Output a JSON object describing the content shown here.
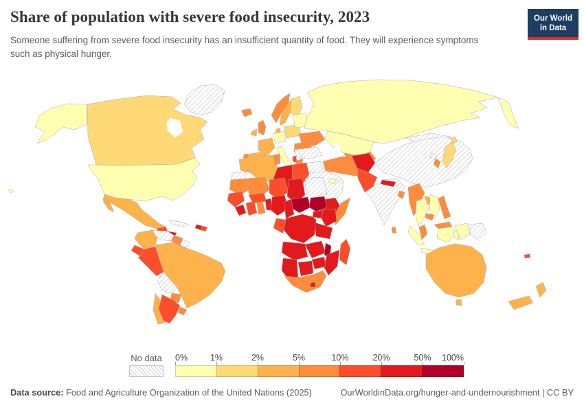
{
  "header": {
    "title": "Share of population with severe food insecurity, 2023",
    "subtitle": "Someone suffering from severe food insecurity has an insufficient quantity of food. They will experience symptoms such as physical hunger.",
    "logo": {
      "line1": "Our World",
      "line2": "in Data"
    }
  },
  "legend": {
    "no_data_label": "No data",
    "tick_labels": [
      "0%",
      "1%",
      "2%",
      "5%",
      "10%",
      "20%",
      "50%",
      "100%"
    ]
  },
  "footer": {
    "source_label": "Data source:",
    "source_text": "Food and Agriculture Organization of the United Nations (2025)",
    "credit": "OurWorldinData.org/hunger-and-undernourishment | CC BY"
  },
  "colors": {
    "logo_bg": "#1d3d63",
    "logo_accent": "#d1342f",
    "title_text": "#383636",
    "body_text": "#5b5b5b",
    "no_data_hatch": "#cfcfcf"
  },
  "chart_data": {
    "type": "choropleth",
    "title": "Share of population with severe food insecurity",
    "year": 2023,
    "unit": "% of population",
    "projection": "world",
    "legend_position": "bottom",
    "color_scale": {
      "no_data": {
        "label": "No data",
        "fill": "hatched"
      },
      "bins": [
        {
          "range": "0-1%",
          "color": "#FFFFB2"
        },
        {
          "range": "1-2%",
          "color": "#FED976"
        },
        {
          "range": "2-5%",
          "color": "#FEB24C"
        },
        {
          "range": "5-10%",
          "color": "#FD8D3C"
        },
        {
          "range": "10-20%",
          "color": "#FC4E2A"
        },
        {
          "range": "20-50%",
          "color": "#E31A1C"
        },
        {
          "range": "50-100%",
          "color": "#B10026"
        }
      ]
    },
    "regions": [
      {
        "id": "greenland",
        "name": "Greenland",
        "bin": "no-data"
      },
      {
        "id": "alaska",
        "name": "United States (Alaska)",
        "bin": "0-1%"
      },
      {
        "id": "canada",
        "name": "Canada",
        "bin": "1-2%"
      },
      {
        "id": "usa",
        "name": "United States",
        "bin": "0-1%"
      },
      {
        "id": "hawaii",
        "name": "United States (Hawaii)",
        "bin": "0-1%"
      },
      {
        "id": "mexico",
        "name": "Mexico",
        "bin": "2-5%"
      },
      {
        "id": "guatemala",
        "name": "Guatemala",
        "bin": "10-20%"
      },
      {
        "id": "honduras",
        "name": "Honduras",
        "bin": "20-50%"
      },
      {
        "id": "central-america",
        "name": "Nicaragua, Costa Rica & Panama",
        "bin": "5-10%"
      },
      {
        "id": "cuba",
        "name": "Cuba",
        "bin": "no-data"
      },
      {
        "id": "haiti",
        "name": "Haiti",
        "bin": "20-50%"
      },
      {
        "id": "dominican-republic",
        "name": "Dominican Republic",
        "bin": "10-20%"
      },
      {
        "id": "colombia",
        "name": "Colombia",
        "bin": "2-5%"
      },
      {
        "id": "venezuela",
        "name": "Venezuela",
        "bin": "no-data"
      },
      {
        "id": "guyana",
        "name": "Guyana",
        "bin": "5-10%"
      },
      {
        "id": "french-guiana",
        "name": "French Guiana",
        "bin": "no-data"
      },
      {
        "id": "ecuador",
        "name": "Ecuador",
        "bin": "10-20%"
      },
      {
        "id": "peru",
        "name": "Peru",
        "bin": "10-20%"
      },
      {
        "id": "brazil",
        "name": "Brazil",
        "bin": "2-5%"
      },
      {
        "id": "bolivia",
        "name": "Bolivia",
        "bin": "no-data"
      },
      {
        "id": "paraguay",
        "name": "Paraguay",
        "bin": "5-10%"
      },
      {
        "id": "uruguay",
        "name": "Uruguay",
        "bin": "5-10%"
      },
      {
        "id": "chile",
        "name": "Chile",
        "bin": "2-5%"
      },
      {
        "id": "argentina",
        "name": "Argentina",
        "bin": "10-20%"
      },
      {
        "id": "iceland",
        "name": "Iceland",
        "bin": "5-10%"
      },
      {
        "id": "uk",
        "name": "United Kingdom",
        "bin": "5-10%"
      },
      {
        "id": "ireland",
        "name": "Ireland",
        "bin": "2-5%"
      },
      {
        "id": "norway",
        "name": "Norway",
        "bin": "5-10%"
      },
      {
        "id": "sweden",
        "name": "Sweden",
        "bin": "2-5%"
      },
      {
        "id": "finland",
        "name": "Finland",
        "bin": "1-2%"
      },
      {
        "id": "denmark",
        "name": "Denmark",
        "bin": "2-5%"
      },
      {
        "id": "germany",
        "name": "Germany",
        "bin": "0-1%"
      },
      {
        "id": "france",
        "name": "France",
        "bin": "2-5%"
      },
      {
        "id": "spain",
        "name": "Spain",
        "bin": "2-5%"
      },
      {
        "id": "portugal",
        "name": "Portugal",
        "bin": "5-10%"
      },
      {
        "id": "italy",
        "name": "Italy",
        "bin": "0-1%"
      },
      {
        "id": "poland",
        "name": "Poland",
        "bin": "1-2%"
      },
      {
        "id": "eastern-europe",
        "name": "Baltics & Belarus",
        "bin": "0-1%"
      },
      {
        "id": "ukraine",
        "name": "Ukraine",
        "bin": "5-10%"
      },
      {
        "id": "romania",
        "name": "Romania",
        "bin": "5-10%"
      },
      {
        "id": "albania",
        "name": "Albania",
        "bin": "10-20%"
      },
      {
        "id": "greece",
        "name": "Greece",
        "bin": "5-10%"
      },
      {
        "id": "russia",
        "name": "Russia",
        "bin": "0-1%"
      },
      {
        "id": "kazakhstan",
        "name": "Kazakhstan",
        "bin": "0-1%"
      },
      {
        "id": "central-asia",
        "name": "Uzbekistan & Turkmenistan",
        "bin": "5-10%"
      },
      {
        "id": "turkey",
        "name": "Turkey",
        "bin": "no-data"
      },
      {
        "id": "syria-iraq",
        "name": "Syria & Iraq",
        "bin": "no-data"
      },
      {
        "id": "saudi-arabia",
        "name": "Saudi Arabia, Yemen & Oman",
        "bin": "no-data"
      },
      {
        "id": "uae",
        "name": "United Arab Emirates",
        "bin": "0-1%"
      },
      {
        "id": "iran",
        "name": "Iran",
        "bin": "5-10%"
      },
      {
        "id": "afghanistan",
        "name": "Afghanistan",
        "bin": "20-50%"
      },
      {
        "id": "pakistan",
        "name": "Pakistan",
        "bin": "10-20%"
      },
      {
        "id": "india",
        "name": "India",
        "bin": "no-data"
      },
      {
        "id": "nepal",
        "name": "Nepal",
        "bin": "20-50%"
      },
      {
        "id": "bangladesh",
        "name": "Bangladesh",
        "bin": "5-10%"
      },
      {
        "id": "sri-lanka",
        "name": "Sri Lanka",
        "bin": "5-10%"
      },
      {
        "id": "china",
        "name": "China",
        "bin": "no-data"
      },
      {
        "id": "mongolia",
        "name": "Mongolia",
        "bin": "no-data"
      },
      {
        "id": "myanmar",
        "name": "Myanmar",
        "bin": "5-10%"
      },
      {
        "id": "thailand",
        "name": "Thailand",
        "bin": "0-1%"
      },
      {
        "id": "laos",
        "name": "Laos",
        "bin": "2-5%"
      },
      {
        "id": "vietnam",
        "name": "Vietnam",
        "bin": "0-1%"
      },
      {
        "id": "cambodia",
        "name": "Cambodia",
        "bin": "5-10%"
      },
      {
        "id": "malaysia",
        "name": "Malaysia",
        "bin": "5-10%"
      },
      {
        "id": "indonesia",
        "name": "Indonesia",
        "bin": "0-1%"
      },
      {
        "id": "philippines",
        "name": "Philippines",
        "bin": "5-10%"
      },
      {
        "id": "north-korea",
        "name": "North Korea",
        "bin": "no-data"
      },
      {
        "id": "south-korea",
        "name": "South Korea",
        "bin": "5-10%"
      },
      {
        "id": "japan",
        "name": "Japan",
        "bin": "1-2%"
      },
      {
        "id": "papua-new-guinea",
        "name": "Papua New Guinea",
        "bin": "no-data"
      },
      {
        "id": "australia",
        "name": "Australia",
        "bin": "2-5%"
      },
      {
        "id": "new-zealand",
        "name": "New Zealand",
        "bin": "2-5%"
      },
      {
        "id": "fiji",
        "name": "Fiji",
        "bin": "10-20%"
      },
      {
        "id": "morocco",
        "name": "Morocco",
        "bin": "2-5%"
      },
      {
        "id": "western-sahara",
        "name": "Western Sahara",
        "bin": "no-data"
      },
      {
        "id": "algeria",
        "name": "Algeria",
        "bin": "2-5%"
      },
      {
        "id": "tunisia",
        "name": "Tunisia",
        "bin": "5-10%"
      },
      {
        "id": "libya",
        "name": "Libya",
        "bin": "20-50%"
      },
      {
        "id": "egypt",
        "name": "Egypt",
        "bin": "10-20%"
      },
      {
        "id": "mauritania",
        "name": "Mauritania",
        "bin": "5-10%"
      },
      {
        "id": "mali",
        "name": "Mali",
        "bin": "5-10%"
      },
      {
        "id": "niger",
        "name": "Niger",
        "bin": "10-20%"
      },
      {
        "id": "chad",
        "name": "Chad",
        "bin": "20-50%"
      },
      {
        "id": "sudan",
        "name": "Sudan",
        "bin": "no-data"
      },
      {
        "id": "eritrea",
        "name": "Eritrea",
        "bin": "no-data"
      },
      {
        "id": "ethiopia",
        "name": "Ethiopia",
        "bin": "20-50%"
      },
      {
        "id": "somalia",
        "name": "Somalia",
        "bin": "5-10%"
      },
      {
        "id": "senegal",
        "name": "Senegal & Guinea",
        "bin": "10-20%"
      },
      {
        "id": "sierra-leone",
        "name": "Sierra Leone & Liberia",
        "bin": "20-50%"
      },
      {
        "id": "ivory-coast",
        "name": "Côte d'Ivoire",
        "bin": "10-20%"
      },
      {
        "id": "ghana",
        "name": "Ghana",
        "bin": "5-10%"
      },
      {
        "id": "burkina-faso",
        "name": "Burkina Faso",
        "bin": "10-20%"
      },
      {
        "id": "benin",
        "name": "Benin & Togo",
        "bin": "20-50%"
      },
      {
        "id": "nigeria",
        "name": "Nigeria",
        "bin": "20-50%"
      },
      {
        "id": "cameroon",
        "name": "Cameroon",
        "bin": "20-50%"
      },
      {
        "id": "central-african-republic",
        "name": "Central African Republic",
        "bin": "50-100%"
      },
      {
        "id": "south-sudan",
        "name": "South Sudan",
        "bin": "50-100%"
      },
      {
        "id": "uganda",
        "name": "Uganda",
        "bin": "20-50%"
      },
      {
        "id": "kenya",
        "name": "Kenya",
        "bin": "20-50%"
      },
      {
        "id": "dr-congo",
        "name": "Democratic Republic of Congo",
        "bin": "20-50%"
      },
      {
        "id": "congo-gabon",
        "name": "Congo & Gabon",
        "bin": "10-20%"
      },
      {
        "id": "tanzania",
        "name": "Tanzania",
        "bin": "20-50%"
      },
      {
        "id": "angola",
        "name": "Angola",
        "bin": "20-50%"
      },
      {
        "id": "zambia",
        "name": "Zambia",
        "bin": "20-50%"
      },
      {
        "id": "malawi",
        "name": "Malawi",
        "bin": "50-100%"
      },
      {
        "id": "mozambique",
        "name": "Mozambique",
        "bin": "20-50%"
      },
      {
        "id": "zimbabwe",
        "name": "Zimbabwe",
        "bin": "20-50%"
      },
      {
        "id": "namibia",
        "name": "Namibia",
        "bin": "20-50%"
      },
      {
        "id": "botswana",
        "name": "Botswana",
        "bin": "20-50%"
      },
      {
        "id": "south-africa",
        "name": "South Africa",
        "bin": "5-10%"
      },
      {
        "id": "lesotho",
        "name": "Lesotho",
        "bin": "20-50%"
      },
      {
        "id": "madagascar",
        "name": "Madagascar",
        "bin": "10-20%"
      }
    ]
  }
}
